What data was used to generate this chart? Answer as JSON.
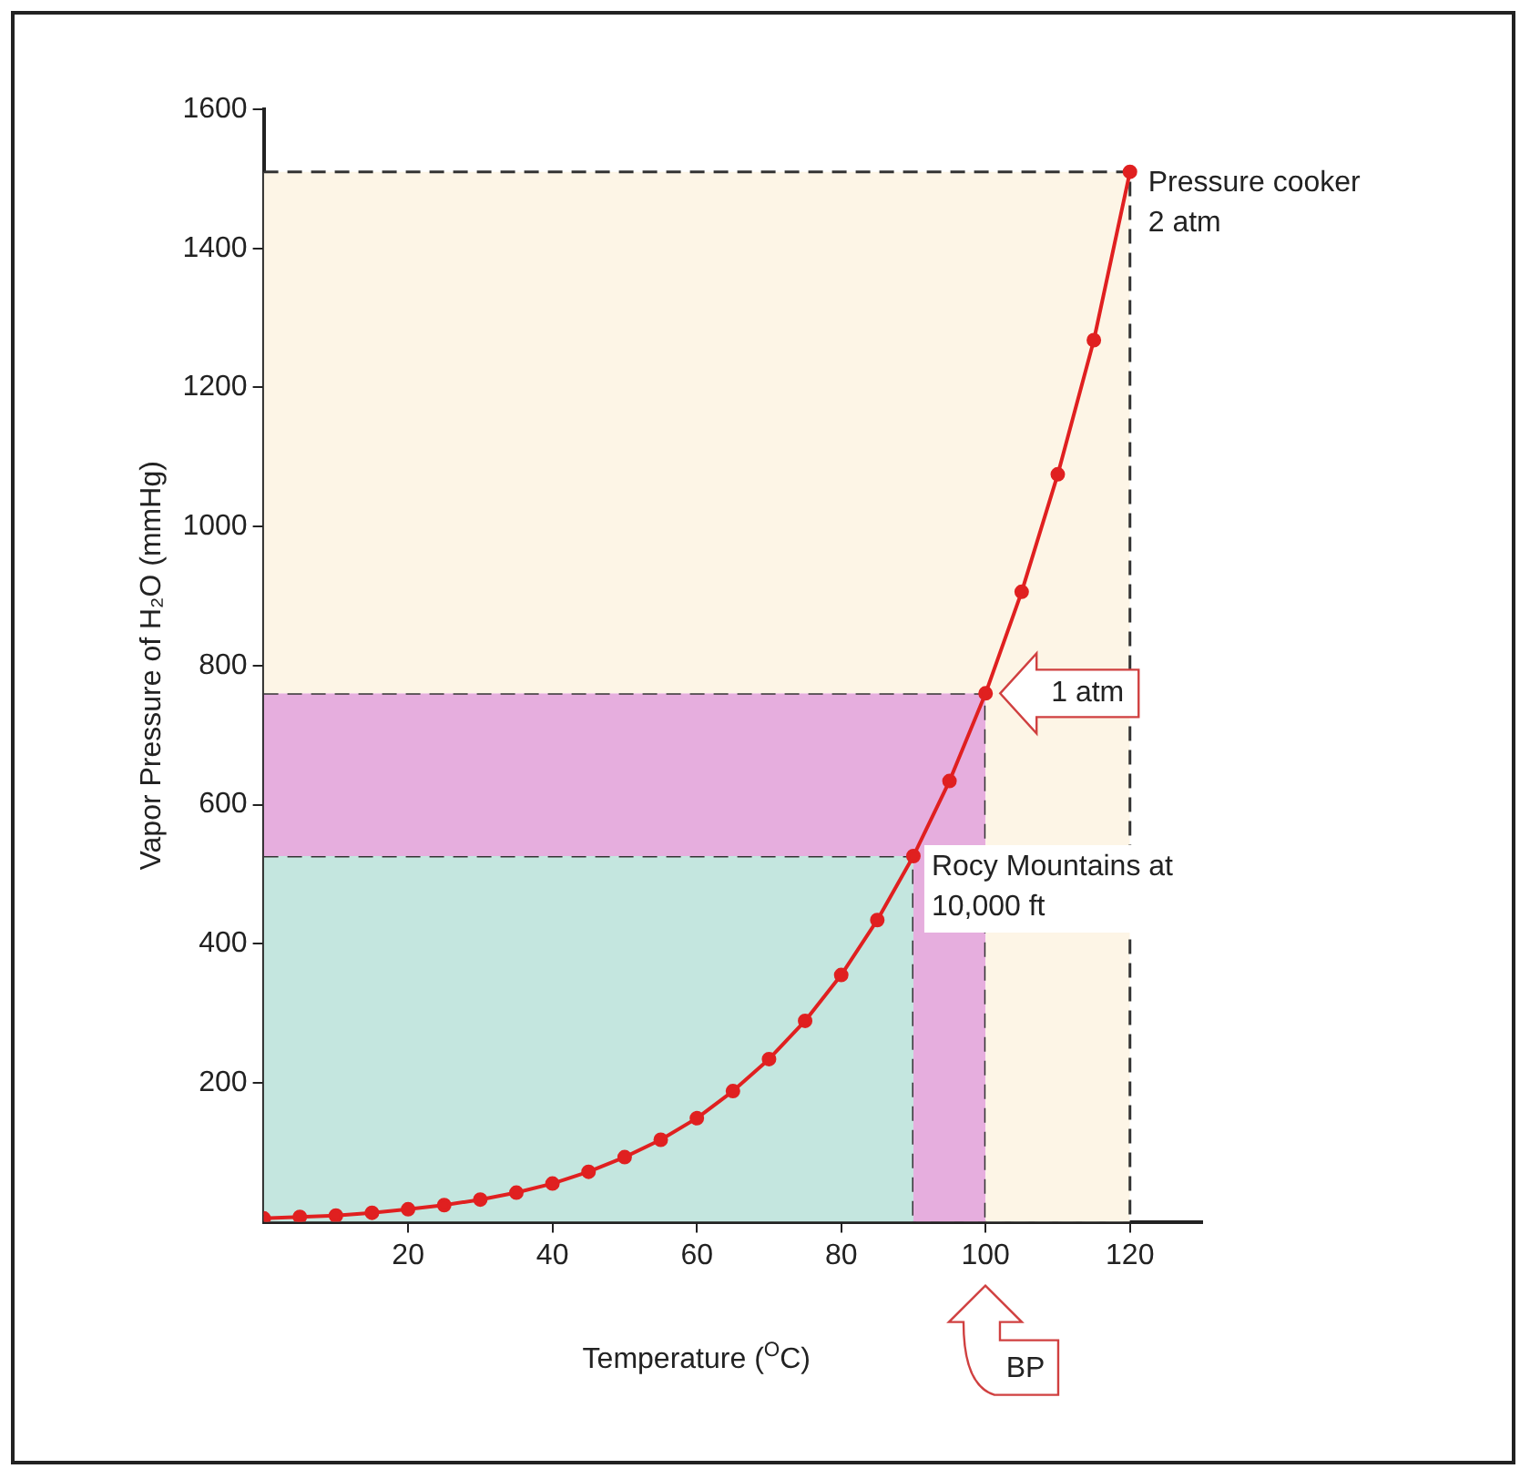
{
  "chart_data": {
    "type": "line",
    "xlabel": "Temperature ($^{O}$C)",
    "ylabel": "Vapor Pressure of H₂O (mmHg)",
    "xlim": [
      0,
      130
    ],
    "xticks": [
      20,
      40,
      60,
      80,
      100,
      120
    ],
    "ylim": [
      0,
      1600
    ],
    "yticks": [
      200,
      400,
      600,
      800,
      1000,
      1200,
      1400,
      1600
    ],
    "grid": false,
    "legend": false,
    "marker": "circle",
    "stacked": true,
    "series": [
      {
        "type": "area",
        "color": "#c4e6df",
        "line_style": "dashed",
        "marker": "none",
        "x": [
          0,
          90,
          90,
          100,
          100,
          120,
          120
        ],
        "values": [
          526,
          526,
          0,
          0,
          0,
          0,
          0
        ]
      },
      {
        "type": "area",
        "color": "#e6aede",
        "line_style": "dashed",
        "marker": "none",
        "x": [
          0,
          90,
          90,
          100,
          100,
          120,
          120
        ],
        "values": [
          234,
          234,
          760,
          760,
          0,
          0,
          0
        ]
      },
      {
        "type": "area",
        "color": "#fdf5e6",
        "line_style": "dashed",
        "marker": "none",
        "x": [
          0,
          90,
          90,
          100,
          100,
          120,
          120
        ],
        "values": [
          750,
          750,
          750,
          750,
          1510,
          1510,
          0
        ]
      },
      {
        "type": "line",
        "color": "#e02020",
        "line_style": "solid",
        "x": [
          0,
          5,
          10,
          15,
          20,
          25,
          30,
          35,
          40,
          45,
          50,
          55,
          60,
          65,
          70,
          75,
          80,
          85,
          90,
          95,
          100,
          105,
          110,
          115,
          120
        ],
        "values": [
          5,
          7,
          9,
          13,
          18,
          24,
          32,
          42,
          55,
          72,
          93,
          118,
          149,
          188,
          234,
          289,
          355,
          434,
          526,
          634,
          760,
          906,
          1075,
          1268,
          1510
        ]
      }
    ],
    "annotations": [
      {
        "text": "Pressure cooker\n2 atm",
        "x": 120,
        "y": 1510
      },
      {
        "text": "1 atm",
        "x": 100,
        "y": 760
      },
      {
        "text": "Rocy Mountains at\n10,000 ft",
        "x": 90,
        "y": 526
      },
      "BP"
    ]
  }
}
